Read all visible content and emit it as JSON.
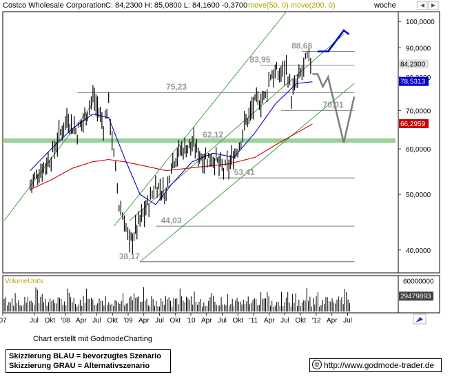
{
  "header": {
    "title": "Costco Wholesale Corporation",
    "quote": "C: 84,2300 H: 85,0800 L: 84,1600 -0,3700",
    "ma_labels": "move(50, 0) move(200, 0)",
    "interval": "woche"
  },
  "chart_data": [
    {
      "type": "line",
      "series": [
        {
          "name": "",
          "color": "#000000",
          "style": "weekly OHLC bars",
          "x": [
            "2007-06",
            "2007-08",
            "2007-10",
            "2008-01",
            "2008-03",
            "2008-05",
            "2008-06",
            "2008-08",
            "2008-09",
            "2008-10",
            "2008-11",
            "2008-12",
            "2009-01",
            "2009-03",
            "2009-05",
            "2009-06",
            "2009-08",
            "2009-09",
            "2009-11",
            "2010-01",
            "2010-03",
            "2010-05",
            "2010-07",
            "2010-08",
            "2010-10",
            "2010-11",
            "2011-01",
            "2011-03",
            "2011-04",
            "2011-06",
            "2011-07",
            "2011-08",
            "2011-10",
            "2011-11",
            "2011-12"
          ],
          "y": [
            52,
            55,
            58,
            68,
            64,
            70,
            74,
            66,
            72,
            58,
            48,
            45,
            41,
            45,
            49,
            52,
            50,
            57,
            60,
            61,
            58,
            58,
            55,
            56,
            61,
            66,
            72,
            74,
            81,
            81,
            84,
            74,
            82,
            86,
            84.23
          ]
        },
        {
          "name": "move(50, 0)",
          "color": "#0000cc",
          "x": [
            "2007-06",
            "2007-10",
            "2008-02",
            "2008-06",
            "2008-09",
            "2008-12",
            "2009-03",
            "2009-06",
            "2009-09",
            "2010-01",
            "2010-05",
            "2010-09",
            "2011-01",
            "2011-05",
            "2011-09",
            "2011-12"
          ],
          "y": [
            55,
            60,
            65,
            69,
            68,
            58,
            50,
            48,
            52,
            57,
            59,
            58,
            64,
            72,
            78,
            78.5313
          ]
        },
        {
          "name": "move(200, 0)",
          "color": "#cc0000",
          "x": [
            "2007-06",
            "2007-10",
            "2008-02",
            "2008-06",
            "2008-09",
            "2008-12",
            "2009-04",
            "2009-08",
            "2009-12",
            "2010-04",
            "2010-08",
            "2011-01",
            "2011-05",
            "2011-09",
            "2011-12"
          ],
          "y": [
            51,
            53,
            55.5,
            57,
            57.5,
            57,
            56,
            55,
            55.5,
            56,
            56.5,
            58,
            61,
            64,
            66.2959
          ]
        }
      ],
      "annotations": [
        {
          "text": "88,68",
          "value": 88.68
        },
        {
          "text": "83,95",
          "value": 83.95
        },
        {
          "text": "75,23",
          "value": 75.23
        },
        {
          "text": "70,01",
          "value": 70.01
        },
        {
          "text": "62,12",
          "value": 62.12
        },
        {
          "text": "53,41",
          "value": 53.41
        },
        {
          "text": "44,03",
          "value": 44.03
        },
        {
          "text": "38,17",
          "value": 38.17
        }
      ],
      "support_zone": {
        "low": 61.5,
        "high": 62.6,
        "color": "#88c888"
      },
      "scenarios": [
        {
          "color": "#0000dd",
          "path": [
            {
              "x": "2012-01",
              "y": 88.68
            },
            {
              "x": "2012-03",
              "y": 88.68
            },
            {
              "x": "2012-06",
              "y": 96.5
            },
            {
              "x": "2012-07",
              "y": 95
            }
          ]
        },
        {
          "color": "#808080",
          "path": [
            {
              "x": "2011-12",
              "y": 81
            },
            {
              "x": "2012-01",
              "y": 81
            },
            {
              "x": "2012-02",
              "y": 77
            },
            {
              "x": "2012-03",
              "y": 80
            },
            {
              "x": "2012-06",
              "y": 61.5
            },
            {
              "x": "2012-08",
              "y": 74
            }
          ]
        }
      ],
      "price_labels": [
        {
          "text": "84,2300",
          "color": "#000000",
          "bg": "#e0e0e0"
        },
        {
          "text": "78,5313",
          "color": "#ffffff",
          "bg": "#0000cc"
        },
        {
          "text": "66,2959",
          "color": "#ffffff",
          "bg": "#cc0000"
        }
      ],
      "yticks": [
        "100,0000",
        "90,0000",
        "80,0000",
        "70,0000",
        "60,0000",
        "50,0000",
        "40,0000"
      ],
      "ytick_values": [
        100,
        90,
        80,
        70,
        60,
        50,
        40
      ],
      "log_scale": true,
      "ylim": [
        36.5,
        104
      ],
      "xticks": [
        {
          "label": "07",
          "date": "2007-01"
        },
        {
          "label": "Jul",
          "date": "2007-07"
        },
        {
          "label": "Okt",
          "date": "2007-10"
        },
        {
          "label": "'08",
          "date": "2008-01"
        },
        {
          "label": "Apr",
          "date": "2008-04"
        },
        {
          "label": "Jul",
          "date": "2008-07"
        },
        {
          "label": "Okt",
          "date": "2008-10"
        },
        {
          "label": "'09",
          "date": "2009-01"
        },
        {
          "label": "Apr",
          "date": "2009-04"
        },
        {
          "label": "Jul",
          "date": "2009-07"
        },
        {
          "label": "Okt",
          "date": "2009-10"
        },
        {
          "label": "'10",
          "date": "2010-01"
        },
        {
          "label": "Apr",
          "date": "2010-04"
        },
        {
          "label": "Jul",
          "date": "2010-07"
        },
        {
          "label": "Okt",
          "date": "2010-10"
        },
        {
          "label": "'11",
          "date": "2011-01"
        },
        {
          "label": "Apr",
          "date": "2011-04"
        },
        {
          "label": "Jul",
          "date": "2011-07"
        },
        {
          "label": "Okt",
          "date": "2011-10"
        },
        {
          "label": "'12",
          "date": "2012-01"
        },
        {
          "label": "Apr",
          "date": "2012-04"
        },
        {
          "label": "Jul",
          "date": "2012-07"
        }
      ]
    },
    {
      "type": "bar",
      "title": "VolumeUnits",
      "yticks": [
        "60000000"
      ],
      "price_labels": [
        {
          "text": "29479893",
          "bg": "#404040",
          "color": "#ffffff"
        }
      ],
      "value_range": [
        9000000,
        48000000
      ],
      "ylim": [
        0,
        65000000
      ]
    }
  ],
  "footer": {
    "credit": "Chart erstellt mit GodmodeCharting",
    "legend_line1": "Skizzierung BLAU = bevorzugtes Szenario",
    "legend_line2": "Skizzierung GRAU = Alternativszenario",
    "url": "http://www.godmode-trader.de",
    "url_icon": "©"
  }
}
